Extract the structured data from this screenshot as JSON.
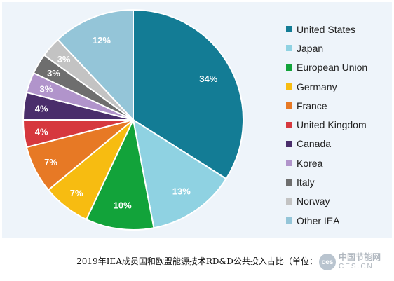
{
  "chart_data": {
    "type": "pie",
    "title": "",
    "slices": [
      {
        "label": "United States",
        "value": 34,
        "display": "34%",
        "color": "#137c95"
      },
      {
        "label": "Japan",
        "value": 13,
        "display": "13%",
        "color": "#8fd2e2"
      },
      {
        "label": "European Union",
        "value": 10,
        "display": "10%",
        "color": "#12a33a"
      },
      {
        "label": "Germany",
        "value": 7,
        "display": "7%",
        "color": "#f7bc11"
      },
      {
        "label": "France",
        "value": 7,
        "display": "7%",
        "color": "#e77925"
      },
      {
        "label": "United Kingdom",
        "value": 4,
        "display": "4%",
        "color": "#d6383e"
      },
      {
        "label": "Canada",
        "value": 4,
        "display": "4%",
        "color": "#4a2e6b"
      },
      {
        "label": "Korea",
        "value": 3,
        "display": "3%",
        "color": "#b194cb"
      },
      {
        "label": "Italy",
        "value": 3,
        "display": "3%",
        "color": "#6e6e6e"
      },
      {
        "label": "Norway",
        "value": 3,
        "display": "3%",
        "color": "#c3c3c3"
      },
      {
        "label": "Other IEA",
        "value": 12,
        "display": "12%",
        "color": "#94c5d8"
      }
    ],
    "legend_position": "right"
  },
  "caption": "2019年IEA成员国和欧盟能源技术RD&D公共投入占比（单位：",
  "watermark": {
    "mark": "ces",
    "line1": "中国节能网",
    "line2": "CES.CN"
  }
}
